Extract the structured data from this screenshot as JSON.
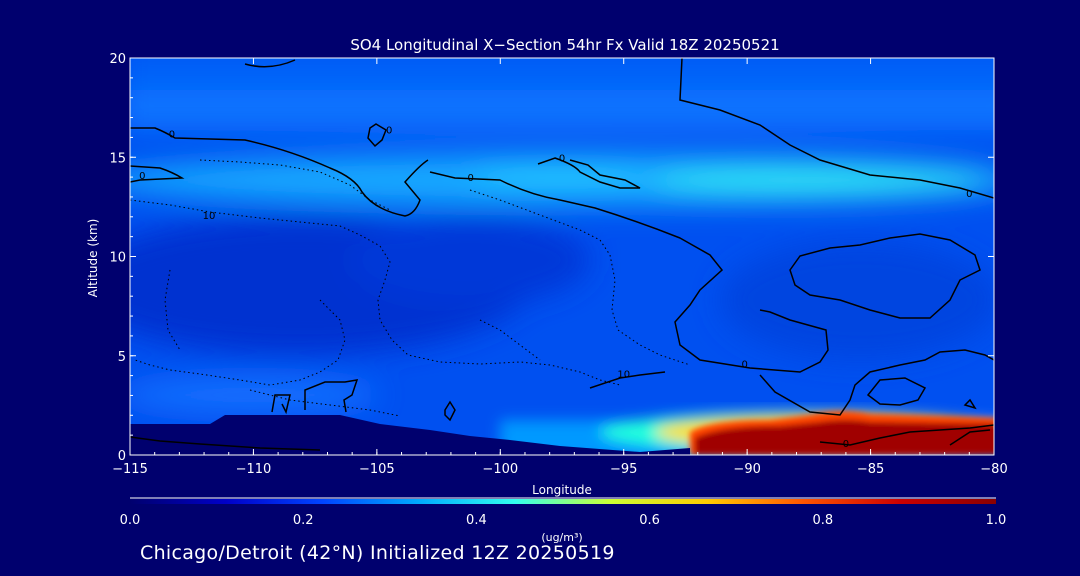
{
  "chart_data": {
    "type": "heatmap",
    "title": "SO4 Longitudinal X−Section 54hr  Fx Valid 18Z 20250521",
    "xlabel": "Longitude",
    "ylabel": "Altitude (km)",
    "xlim": [
      -115,
      -80
    ],
    "ylim": [
      0,
      20
    ],
    "x_ticks": [
      {
        "value": -115,
        "label": "−115"
      },
      {
        "value": -110,
        "label": "−110"
      },
      {
        "value": -105,
        "label": "−105"
      },
      {
        "value": -100,
        "label": "−100"
      },
      {
        "value": -95,
        "label": "−95"
      },
      {
        "value": -90,
        "label": "−90"
      },
      {
        "value": -85,
        "label": "−85"
      },
      {
        "value": -80,
        "label": "−80"
      }
    ],
    "y_ticks": [
      {
        "value": 0,
        "label": "0"
      },
      {
        "value": 5,
        "label": "5"
      },
      {
        "value": 10,
        "label": "10"
      },
      {
        "value": 15,
        "label": "15"
      },
      {
        "value": 20,
        "label": "20"
      }
    ],
    "colorbar": {
      "min": 0.0,
      "max": 1.0,
      "unit": "(ug/m³)",
      "ticks": [
        {
          "value": 0.0,
          "label": "0.0"
        },
        {
          "value": 0.2,
          "label": "0.2"
        },
        {
          "value": 0.4,
          "label": "0.4"
        },
        {
          "value": 0.6,
          "label": "0.6"
        },
        {
          "value": 0.8,
          "label": "0.8"
        },
        {
          "value": 1.0,
          "label": "1.0"
        }
      ],
      "colors": [
        "#00006e",
        "#0000c8",
        "#0044ff",
        "#00aaff",
        "#33ffee",
        "#ccff33",
        "#ffcc00",
        "#ff5500",
        "#cc0000",
        "#8a0000"
      ]
    },
    "field": {
      "background_value": 0.22,
      "features": [
        {
          "name": "upper-tropospheric band",
          "lon": [
            -115,
            -80
          ],
          "alt": [
            12.5,
            15
          ],
          "peak_value": 0.45
        },
        {
          "name": "band maximum",
          "lon": [
            -95,
            -80
          ],
          "alt": [
            12.8,
            14.2
          ],
          "peak_value": 0.5
        },
        {
          "name": "mid-level minimum",
          "lon": [
            -115,
            -95
          ],
          "alt": [
            5,
            11
          ],
          "peak_value": 0.12
        },
        {
          "name": "boundary layer plume",
          "lon": [
            -92.5,
            -80
          ],
          "alt": [
            0,
            2
          ],
          "peak_value": 1.0
        },
        {
          "name": "surface terrain mask",
          "lon": [
            -115,
            -93
          ],
          "alt": [
            0,
            2
          ],
          "peak_value": 0.0
        }
      ]
    },
    "contour_labels": [
      {
        "text": "0",
        "lon": -113.3,
        "alt": 16.2
      },
      {
        "text": "0",
        "lon": -114.5,
        "alt": 14.1
      },
      {
        "text": "10",
        "lon": -111.8,
        "alt": 12.1
      },
      {
        "text": "0",
        "lon": -104.5,
        "alt": 16.4
      },
      {
        "text": "0",
        "lon": -101.2,
        "alt": 14
      },
      {
        "text": "0",
        "lon": -97.5,
        "alt": 15
      },
      {
        "text": "0",
        "lon": -81,
        "alt": 13.2
      },
      {
        "text": "10",
        "lon": -95,
        "alt": 4.1
      },
      {
        "text": "0",
        "lon": -90.1,
        "alt": 4.6
      },
      {
        "text": "0",
        "lon": -86,
        "alt": 0.6
      }
    ]
  },
  "footer": "Chicago/Detroit (42°N) Initialized 12Z 20250519"
}
